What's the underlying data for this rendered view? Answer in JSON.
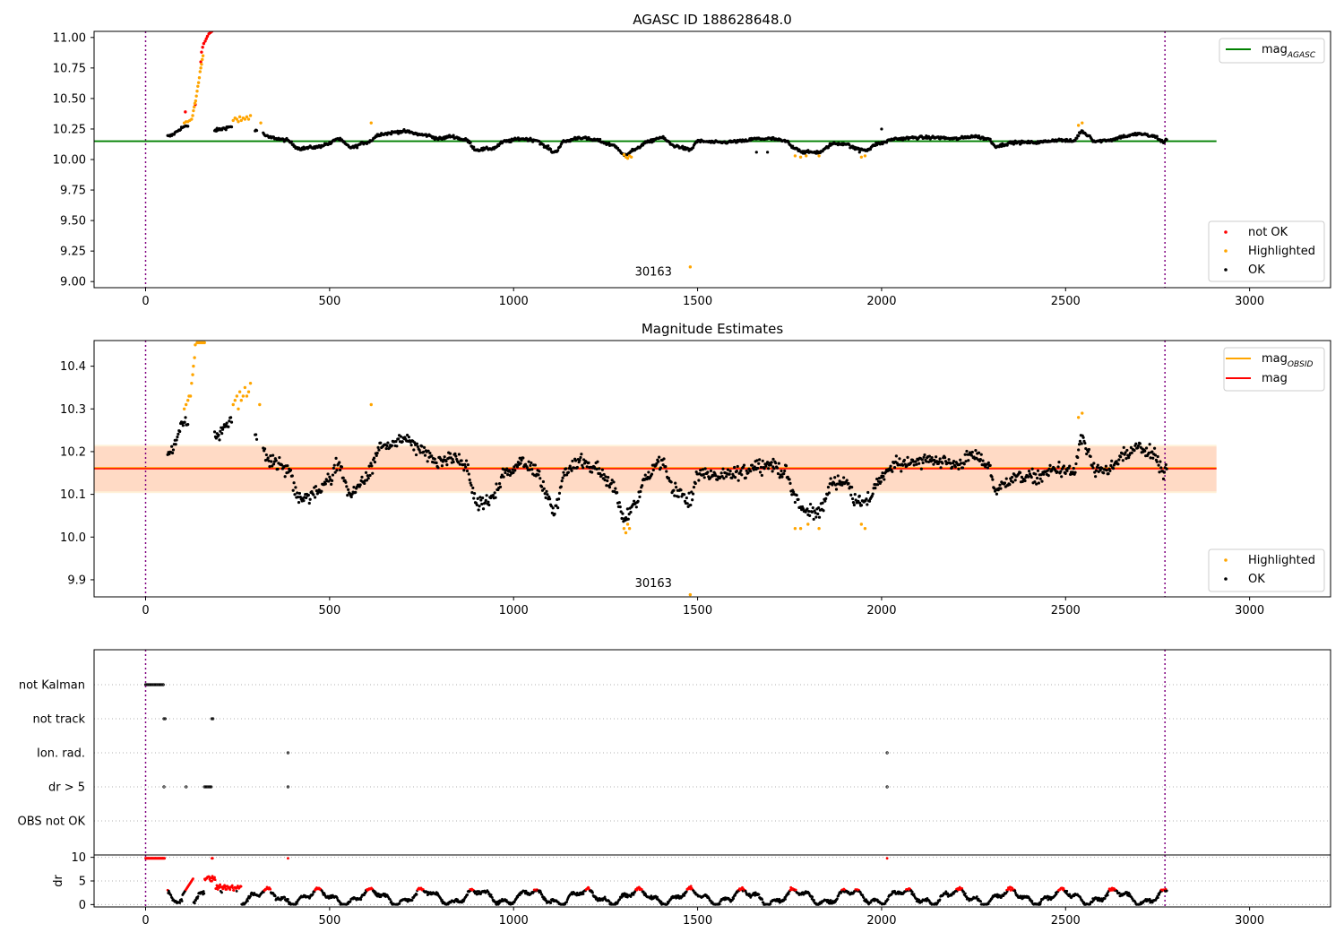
{
  "chart_data": [
    {
      "type": "scatter",
      "title": "AGASC ID 188628648.0",
      "xlim": [
        -140,
        3220
      ],
      "ylim": [
        8.95,
        11.05
      ],
      "x_ticks": [
        0,
        500,
        1000,
        1500,
        2000,
        2500,
        3000
      ],
      "y_ticks": [
        "9.00",
        "9.25",
        "9.50",
        "9.75",
        "10.00",
        "10.25",
        "10.50",
        "10.75",
        "11.00"
      ],
      "vlines": [
        0,
        2770
      ],
      "hline": {
        "name": "mag_AGASC",
        "y": 10.15,
        "x": [
          -140,
          2910
        ],
        "color": "#008000"
      },
      "annotation": {
        "text": "30163",
        "x": 1380,
        "y": 9.05
      },
      "legend_lines": [
        {
          "name": "mag",
          "sub": "AGASC",
          "color": "#008000"
        }
      ],
      "legend_points": [
        {
          "name": "not OK",
          "color": "#ff0000"
        },
        {
          "name": "Highlighted",
          "color": "#ffa500"
        },
        {
          "name": "OK",
          "color": "#000000"
        }
      ],
      "series": [
        {
          "name": "not OK",
          "color": "#ff0000",
          "points": [
            [
              108,
              10.39
            ],
            [
              135,
              10.45
            ],
            [
              150,
              10.8
            ],
            [
              152,
              10.88
            ],
            [
              155,
              10.92
            ],
            [
              158,
              10.95
            ],
            [
              162,
              10.97
            ],
            [
              165,
              10.99
            ],
            [
              168,
              11.01
            ],
            [
              172,
              11.03
            ],
            [
              176,
              11.04
            ],
            [
              180,
              11.05
            ]
          ]
        },
        {
          "name": "Highlighted",
          "color": "#ffa500",
          "points": [
            [
              105,
              10.3
            ],
            [
              110,
              10.31
            ],
            [
              115,
              10.31
            ],
            [
              120,
              10.32
            ],
            [
              125,
              10.33
            ],
            [
              128,
              10.36
            ],
            [
              130,
              10.4
            ],
            [
              132,
              10.43
            ],
            [
              134,
              10.46
            ],
            [
              136,
              10.48
            ],
            [
              138,
              10.52
            ],
            [
              140,
              10.56
            ],
            [
              142,
              10.6
            ],
            [
              144,
              10.63
            ],
            [
              146,
              10.67
            ],
            [
              148,
              10.72
            ],
            [
              150,
              10.75
            ],
            [
              152,
              10.78
            ],
            [
              154,
              10.82
            ],
            [
              156,
              10.85
            ],
            [
              238,
              10.32
            ],
            [
              243,
              10.34
            ],
            [
              248,
              10.33
            ],
            [
              252,
              10.31
            ],
            [
              256,
              10.35
            ],
            [
              260,
              10.32
            ],
            [
              265,
              10.34
            ],
            [
              270,
              10.33
            ],
            [
              275,
              10.35
            ],
            [
              280,
              10.33
            ],
            [
              285,
              10.36
            ],
            [
              313,
              10.3
            ],
            [
              613,
              10.3
            ],
            [
              1300,
              10.04
            ],
            [
              1305,
              10.02
            ],
            [
              1310,
              10.01
            ],
            [
              1315,
              10.03
            ],
            [
              1320,
              10.02
            ],
            [
              1480,
              9.12
            ],
            [
              1765,
              10.03
            ],
            [
              1780,
              10.02
            ],
            [
              1795,
              10.03
            ],
            [
              1830,
              10.03
            ],
            [
              1945,
              10.02
            ],
            [
              1955,
              10.03
            ],
            [
              2535,
              10.28
            ],
            [
              2545,
              10.3
            ]
          ]
        }
      ]
    },
    {
      "type": "scatter",
      "title": "Magnitude Estimates",
      "xlim": [
        -140,
        3220
      ],
      "ylim": [
        9.86,
        10.46
      ],
      "x_ticks": [
        0,
        500,
        1000,
        1500,
        2000,
        2500,
        3000
      ],
      "y_ticks": [
        "9.9",
        "10.0",
        "10.1",
        "10.2",
        "10.3",
        "10.4"
      ],
      "vlines": [
        0,
        2770
      ],
      "band_outer": {
        "y": [
          10.107,
          10.212
        ],
        "x": [
          -140,
          2910
        ],
        "color": "#ffc0cb"
      },
      "band_inner": {
        "y": [
          10.103,
          10.216
        ],
        "x": [
          -140,
          2910
        ],
        "color": "#ffa500"
      },
      "hline": {
        "name": "mag",
        "y": 10.16,
        "x": [
          -140,
          2910
        ],
        "color": "#ff0000"
      },
      "annotation": {
        "text": "30163",
        "x": 1380,
        "y": 9.87
      },
      "legend_lines": [
        {
          "name": "mag",
          "sub": "OBSID",
          "color": "#ffa500"
        },
        {
          "name": "mag",
          "sub": "",
          "color": "#ff0000"
        }
      ],
      "legend_points": [
        {
          "name": "Highlighted",
          "color": "#ffa500"
        },
        {
          "name": "OK",
          "color": "#000000"
        }
      ],
      "series": [
        {
          "name": "Highlighted",
          "color": "#ffa500",
          "points": [
            [
              105,
              10.3
            ],
            [
              110,
              10.31
            ],
            [
              115,
              10.32
            ],
            [
              118,
              10.33
            ],
            [
              122,
              10.33
            ],
            [
              125,
              10.36
            ],
            [
              128,
              10.38
            ],
            [
              130,
              10.4
            ],
            [
              133,
              10.42
            ],
            [
              135,
              10.45
            ],
            [
              140,
              10.455
            ],
            [
              145,
              10.455
            ],
            [
              150,
              10.455
            ],
            [
              155,
              10.455
            ],
            [
              160,
              10.455
            ],
            [
              238,
              10.31
            ],
            [
              243,
              10.32
            ],
            [
              248,
              10.33
            ],
            [
              252,
              10.3
            ],
            [
              256,
              10.34
            ],
            [
              260,
              10.32
            ],
            [
              265,
              10.33
            ],
            [
              270,
              10.35
            ],
            [
              275,
              10.33
            ],
            [
              280,
              10.34
            ],
            [
              285,
              10.36
            ],
            [
              310,
              10.31
            ],
            [
              613,
              10.31
            ],
            [
              1300,
              10.02
            ],
            [
              1305,
              10.01
            ],
            [
              1310,
              10.03
            ],
            [
              1315,
              10.02
            ],
            [
              1480,
              9.865
            ],
            [
              1765,
              10.02
            ],
            [
              1780,
              10.02
            ],
            [
              1800,
              10.03
            ],
            [
              1830,
              10.02
            ],
            [
              1945,
              10.03
            ],
            [
              1955,
              10.02
            ],
            [
              2535,
              10.28
            ],
            [
              2545,
              10.29
            ]
          ]
        }
      ]
    },
    {
      "type": "scatter",
      "title": "",
      "xlim": [
        -140,
        3220
      ],
      "categories": [
        "not Kalman",
        "not track",
        "Ion. rad.",
        "dr > 5",
        "OBS not OK"
      ],
      "vlines": [
        0,
        2770
      ],
      "flag_points": {
        "not Kalman": [
          [
            0,
            50
          ]
        ],
        "not track": [
          [
            50,
            55
          ],
          [
            180,
            185
          ]
        ],
        "Ion. rad.": [
          [
            387,
            387
          ],
          [
            2015,
            2015
          ]
        ],
        "dr > 5": [
          [
            50,
            50
          ],
          [
            110,
            110
          ],
          [
            160,
            180
          ],
          [
            387,
            387
          ],
          [
            2015,
            2015
          ]
        ],
        "OBS not OK": []
      }
    },
    {
      "type": "scatter",
      "title": "",
      "ylabel": "dr",
      "xlim": [
        -140,
        3220
      ],
      "ylim": [
        -0.5,
        10.5
      ],
      "x_ticks": [
        0,
        500,
        1000,
        1500,
        2000,
        2500,
        3000
      ],
      "y_ticks": [
        "0",
        "5",
        "10"
      ],
      "vlines": [
        0,
        2770
      ],
      "threshold": 3,
      "colors": {
        "high": "#ff0000",
        "low": "#000000"
      }
    }
  ]
}
